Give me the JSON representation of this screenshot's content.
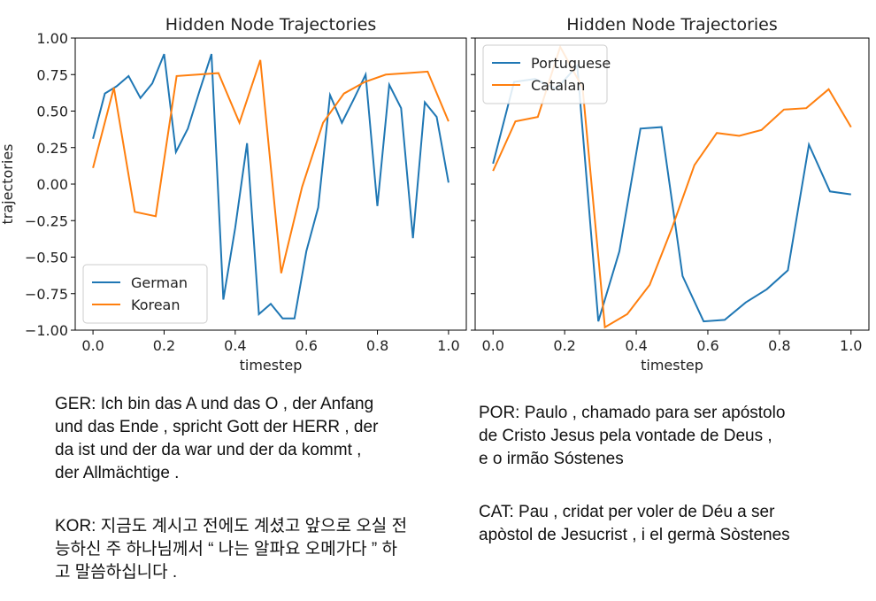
{
  "chart_data": [
    {
      "type": "line",
      "title": "Hidden Node Trajectories",
      "xlabel": "timestep",
      "ylabel": "trajectories",
      "xlim": [
        -0.05,
        1.05
      ],
      "ylim": [
        -1.0,
        1.0
      ],
      "xticks": [
        {
          "value": 0,
          "label": "0.0"
        },
        0.2,
        0.4,
        0.6,
        0.8,
        {
          "value": 1,
          "label": "1.0"
        }
      ],
      "yticks": [
        {
          "value": -1,
          "label": "−1.00"
        },
        {
          "value": -0.75,
          "label": "−0.75"
        },
        {
          "value": -0.5,
          "label": "−0.50"
        },
        {
          "value": -0.25,
          "label": "−0.25"
        },
        {
          "value": 0,
          "label": "0.00"
        },
        {
          "value": 0.25,
          "label": "0.25"
        },
        {
          "value": 0.5,
          "label": "0.50"
        },
        {
          "value": 0.75,
          "label": "0.75"
        },
        {
          "value": 1,
          "label": "1.00"
        }
      ],
      "ytick_labels": true,
      "legend": "lower left",
      "series": [
        {
          "name": "German",
          "color": "#1f77b4",
          "x": [
            0,
            0.0333,
            0.0667,
            0.1,
            0.1333,
            0.1667,
            0.2,
            0.2333,
            0.2667,
            0.3,
            0.3333,
            0.3667,
            0.4,
            0.4333,
            0.4667,
            0.5,
            0.5333,
            0.5667,
            0.6,
            0.6333,
            0.6667,
            0.7,
            0.7333,
            0.7667,
            0.8,
            0.8333,
            0.8667,
            0.9,
            0.9333,
            0.9667,
            1
          ],
          "values": [
            0.31,
            0.62,
            0.67,
            0.74,
            0.59,
            0.69,
            0.89,
            0.22,
            0.38,
            0.64,
            0.89,
            -0.79,
            -0.3,
            0.28,
            -0.89,
            -0.82,
            -0.92,
            -0.92,
            -0.46,
            -0.16,
            0.61,
            0.42,
            0.58,
            0.75,
            -0.15,
            0.68,
            0.52,
            -0.37,
            0.56,
            0.46,
            0.01
          ]
        },
        {
          "name": "Korean",
          "color": "#ff7f0e",
          "x": [
            0,
            0.0588,
            0.1176,
            0.1765,
            0.2353,
            0.2941,
            0.3529,
            0.4118,
            0.4706,
            0.5294,
            0.5882,
            0.6471,
            0.7059,
            0.7647,
            0.8235,
            0.8824,
            0.9412,
            1
          ],
          "values": [
            0.11,
            0.66,
            -0.19,
            -0.22,
            0.74,
            0.75,
            0.76,
            0.42,
            0.85,
            -0.61,
            -0.02,
            0.42,
            0.62,
            0.7,
            0.75,
            0.76,
            0.77,
            0.43
          ]
        }
      ]
    },
    {
      "type": "line",
      "title": "Hidden Node Trajectories",
      "xlabel": "timestep",
      "xlim": [
        -0.05,
        1.05
      ],
      "ylim": [
        -1.0,
        1.0
      ],
      "xticks": [
        {
          "value": 0,
          "label": "0.0"
        },
        0.2,
        0.4,
        0.6,
        0.8,
        {
          "value": 1,
          "label": "1.0"
        }
      ],
      "yticks": [
        -1,
        -0.75,
        -0.5,
        -0.25,
        0,
        0.25,
        0.5,
        0.75,
        1
      ],
      "ytick_labels": false,
      "legend": "upper left",
      "series": [
        {
          "name": "Portuguese",
          "color": "#1f77b4",
          "x": [
            0,
            0.0588,
            0.1176,
            0.1765,
            0.2353,
            0.2941,
            0.3529,
            0.4118,
            0.4706,
            0.5294,
            0.5882,
            0.6471,
            0.7059,
            0.7647,
            0.8235,
            0.8824,
            0.9412,
            1
          ],
          "values": [
            0.14,
            0.7,
            0.72,
            0.65,
            0.81,
            -0.94,
            -0.46,
            0.38,
            0.39,
            -0.63,
            -0.94,
            -0.93,
            -0.81,
            -0.72,
            -0.59,
            0.27,
            -0.05,
            -0.07
          ]
        },
        {
          "name": "Catalan",
          "color": "#ff7f0e",
          "x": [
            0,
            0.0625,
            0.125,
            0.1875,
            0.25,
            0.3125,
            0.375,
            0.4375,
            0.5,
            0.5625,
            0.625,
            0.6875,
            0.75,
            0.8125,
            0.875,
            0.9375,
            1
          ],
          "values": [
            0.09,
            0.43,
            0.46,
            0.94,
            0.66,
            -0.98,
            -0.89,
            -0.69,
            -0.3,
            0.13,
            0.35,
            0.33,
            0.37,
            0.51,
            0.52,
            0.65,
            0.39
          ]
        }
      ]
    }
  ],
  "captions": [
    {
      "lines": [
        "GER: Ich bin das A und das O , der Anfang",
        "und das Ende , spricht Gott der HERR , der",
        "da ist und der da war und der da kommt ,",
        "der Allmächtige ."
      ]
    },
    {
      "lines": [
        "KOR: 지금도 계시고 전에도 계셨고 앞으로 오실 전",
        "능하신 주 하나님께서 “ 나는 알파요 오메가다 ” 하",
        "고 말씀하십니다 ."
      ]
    },
    {
      "lines": [
        "POR: Paulo , chamado para ser apóstolo",
        "de Cristo Jesus pela vontade de Deus ,",
        "e o irmão Sóstenes"
      ]
    },
    {
      "lines": [
        "CAT: Pau , cridat per voler de Déu a ser",
        "apòstol de Jesucrist , i el germà Sòstenes"
      ]
    }
  ]
}
